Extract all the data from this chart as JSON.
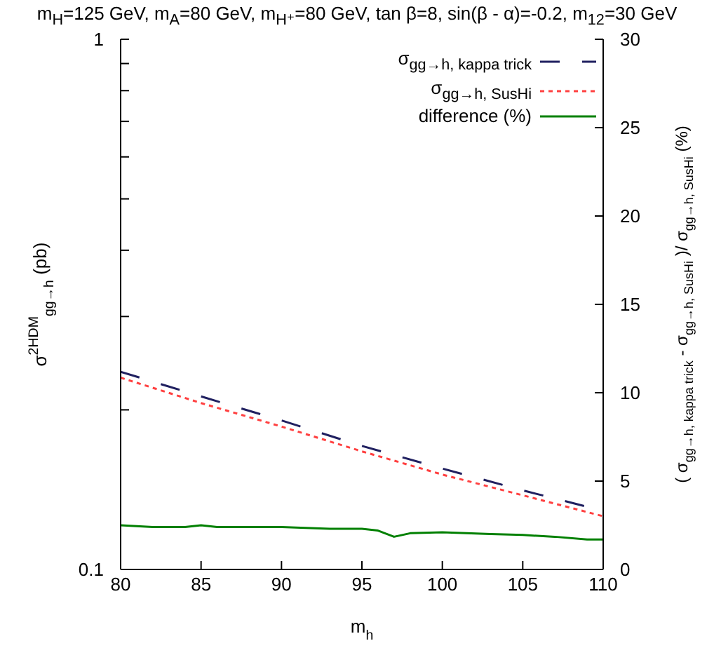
{
  "chart_data": {
    "type": "line",
    "title": "m$_{H}$=125 GeV, m$_{A}$=80 GeV, m$_{H⁺}$=80 GeV, tan β=8, sin(β - α)=-0.2, m$_{12}$=30 GeV",
    "xlabel": "m$_{h}$",
    "ylabel": "σ$^{2HDM}$$_{gg→h}$ (pb)",
    "y2label": "( σ$_{gg→h, kappa trick}$ - σ$_{gg→h, SusHi}$ )/ σ$_{gg→h, SusHi}$ (%)",
    "log": "y",
    "xlim": [
      80,
      110
    ],
    "xticks": [
      80,
      85,
      90,
      95,
      100,
      105,
      110
    ],
    "ylim": [
      0.1,
      1
    ],
    "yticks": [
      0.1,
      {
        "value": 0.2,
        "label": null
      },
      {
        "value": 0.3,
        "label": null
      },
      {
        "value": 0.4,
        "label": null
      },
      {
        "value": 0.5,
        "label": null
      },
      {
        "value": 0.6,
        "label": null
      },
      {
        "value": 0.7,
        "label": null
      },
      {
        "value": 0.8,
        "label": null
      },
      {
        "value": 0.9,
        "label": null
      },
      1
    ],
    "y2lim": [
      0,
      30
    ],
    "y2ticks": [
      0,
      5,
      10,
      15,
      20,
      25,
      30
    ],
    "legend": "top right",
    "grid": false,
    "marker": "none",
    "series": [
      {
        "name": "σ$_{gg→h, kappa trick}$",
        "color": "#202060",
        "line_style": "dashed",
        "x": [
          80,
          85,
          90,
          95,
          100,
          105,
          110
        ],
        "values": [
          0.236,
          0.212,
          0.191,
          0.171,
          0.155,
          0.141,
          0.129
        ]
      },
      {
        "name": "σ$_{gg→h, SusHi}$",
        "color": "#ff4040",
        "line_style": "dotted",
        "x": [
          80,
          85,
          90,
          95,
          100,
          105,
          110
        ],
        "values": [
          0.23,
          0.206,
          0.186,
          0.167,
          0.151,
          0.138,
          0.126
        ]
      },
      {
        "name": "difference (%)",
        "color": "#008000",
        "line_style": "solid",
        "axis": "y2",
        "x": [
          80,
          82,
          84,
          85,
          86,
          90,
          93,
          95,
          96,
          97,
          98,
          100,
          103,
          105,
          107,
          109,
          110
        ],
        "values": [
          2.5,
          2.4,
          2.4,
          2.5,
          2.4,
          2.4,
          2.3,
          2.3,
          2.2,
          1.85,
          2.05,
          2.1,
          2.0,
          1.95,
          1.85,
          1.7,
          1.7
        ]
      }
    ]
  }
}
